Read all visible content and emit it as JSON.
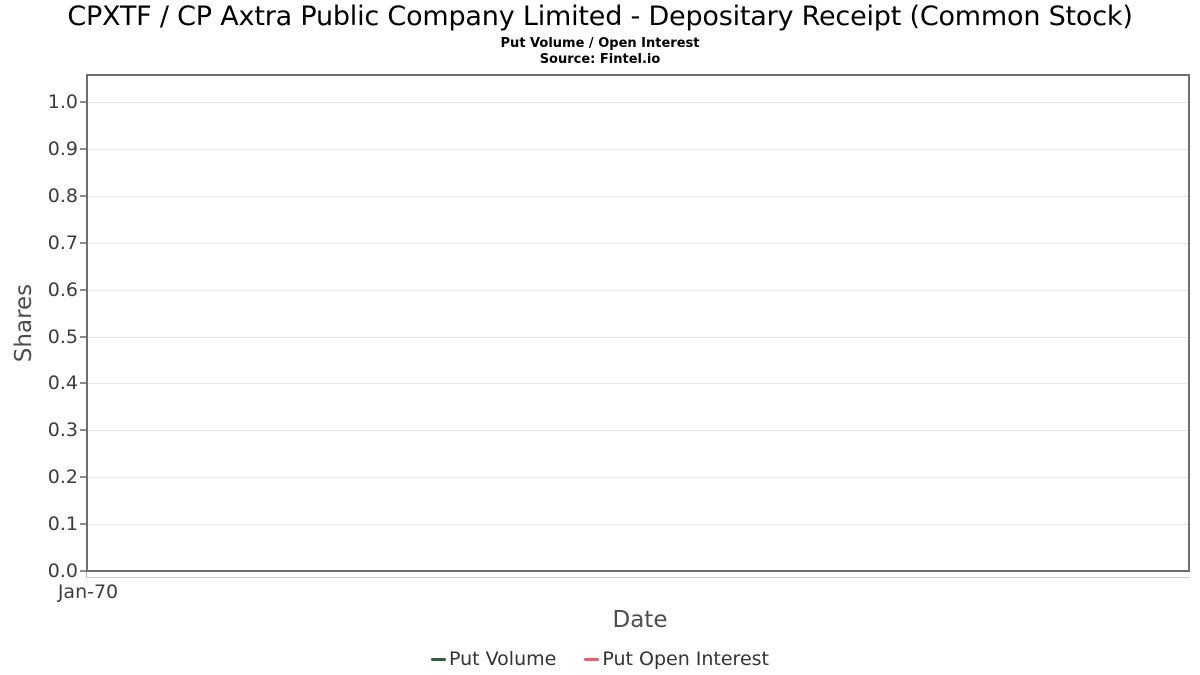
{
  "header": {
    "title": "CPXTF / CP Axtra Public Company Limited - Depositary Receipt (Common Stock)",
    "subtitle": "Put Volume / Open Interest",
    "source": "Source: Fintel.io"
  },
  "chart_data": {
    "type": "line",
    "title": "CPXTF / CP Axtra Public Company Limited - Depositary Receipt (Common Stock)",
    "subtitle": "Put Volume / Open Interest",
    "source_note": "Source: Fintel.io",
    "xlabel": "Date",
    "ylabel": "Shares",
    "x_ticks": [
      "Jan-70"
    ],
    "y_ticks": [
      "0.0",
      "0.1",
      "0.2",
      "0.3",
      "0.4",
      "0.5",
      "0.6",
      "0.7",
      "0.8",
      "0.9",
      "1.0"
    ],
    "ylim": [
      0.0,
      1.06
    ],
    "grid": true,
    "legend_position": "bottom",
    "plot_empty": true,
    "series": [
      {
        "name": "Put Volume",
        "color": "#2d5c41",
        "values": []
      },
      {
        "name": "Put Open Interest",
        "color": "#ef5e5e",
        "values": []
      }
    ]
  },
  "colors": {
    "plot_border": "#6e6e6e",
    "gridline": "#e7e7e7",
    "tick_text": "#3d3d3d",
    "axis_title_text": "#4d4d4d",
    "legend_text": "#333333",
    "background": "#ffffff"
  }
}
